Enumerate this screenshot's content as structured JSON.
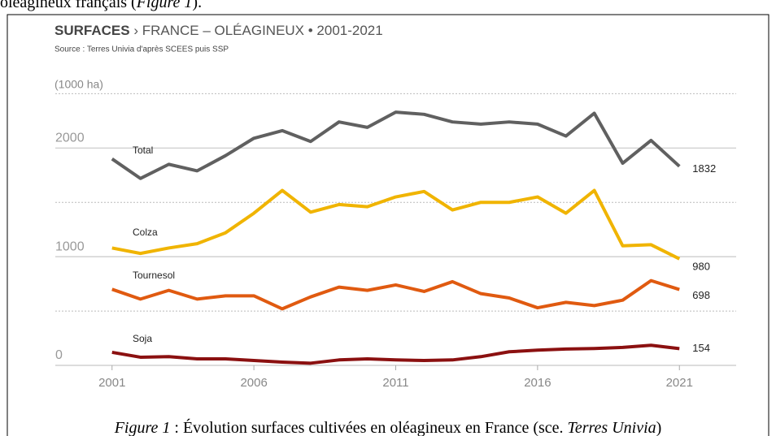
{
  "document": {
    "top_text": [
      "oléagineux français (",
      "Figure 1",
      ")."
    ],
    "caption": [
      "Figure 1",
      " : Évolution surfaces cultivées en oléagineux en France (sce. ",
      "Terres Univia",
      ")"
    ]
  },
  "chart_data": {
    "type": "line",
    "title_bold": "SURFACES",
    "title": "› FRANCE – OLÉAGINEUX • 2001-2021",
    "subtitle": "Source : Terres Univia d'après SCEES puis SSP",
    "y_label": "(1000 ha)",
    "x": [
      2001,
      2002,
      2003,
      2004,
      2005,
      2006,
      2007,
      2008,
      2009,
      2010,
      2011,
      2012,
      2013,
      2014,
      2015,
      2016,
      2017,
      2018,
      2019,
      2020,
      2021
    ],
    "series": [
      {
        "name": "Total",
        "color": "#606060",
        "values": [
          1900,
          1720,
          1850,
          1790,
          1930,
          2090,
          2160,
          2060,
          2240,
          2190,
          2330,
          2310,
          2240,
          2220,
          2240,
          2220,
          2110,
          2320,
          1860,
          2070,
          1832
        ]
      },
      {
        "name": "Colza",
        "color": "#f0b400",
        "values": [
          1080,
          1030,
          1080,
          1120,
          1220,
          1400,
          1610,
          1410,
          1480,
          1460,
          1550,
          1600,
          1430,
          1500,
          1500,
          1550,
          1400,
          1610,
          1100,
          1110,
          980
        ]
      },
      {
        "name": "Tournesol",
        "color": "#e05a10",
        "values": [
          700,
          610,
          690,
          610,
          640,
          640,
          520,
          630,
          720,
          690,
          740,
          680,
          770,
          660,
          620,
          530,
          580,
          550,
          600,
          780,
          698
        ]
      },
      {
        "name": "Soja",
        "color": "#8b1010",
        "values": [
          120,
          75,
          80,
          60,
          60,
          45,
          30,
          20,
          50,
          60,
          50,
          45,
          50,
          80,
          125,
          140,
          150,
          155,
          165,
          185,
          154
        ]
      }
    ],
    "xlim": [
      1999,
      2023
    ],
    "xticks": [
      2001,
      2006,
      2011,
      2016,
      2021
    ],
    "ylim": [
      0,
      2600
    ],
    "yticks": [
      0,
      1000,
      2000
    ],
    "grid": true
  }
}
